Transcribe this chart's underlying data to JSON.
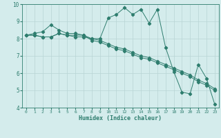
{
  "line1_x": [
    0,
    1,
    2,
    3,
    4,
    5,
    6,
    7,
    8,
    9,
    10,
    11,
    12,
    13,
    14,
    15,
    16,
    17,
    18,
    19,
    20,
    21,
    22,
    23
  ],
  "line1_y": [
    8.2,
    8.3,
    8.4,
    8.8,
    8.5,
    8.3,
    8.3,
    8.2,
    8.0,
    8.0,
    9.2,
    9.4,
    9.8,
    9.4,
    9.7,
    8.9,
    9.7,
    7.5,
    6.1,
    4.9,
    4.8,
    6.5,
    5.7,
    4.2
  ],
  "line2_x": [
    0,
    1,
    2,
    3,
    4,
    5,
    6,
    7,
    8,
    9,
    10,
    11,
    12,
    13,
    14,
    15,
    16,
    17,
    18,
    19,
    20,
    21,
    22,
    23
  ],
  "line2_y": [
    8.2,
    8.2,
    8.1,
    8.1,
    8.3,
    8.2,
    8.2,
    8.2,
    7.9,
    7.8,
    7.6,
    7.4,
    7.3,
    7.1,
    6.9,
    6.8,
    6.6,
    6.4,
    6.2,
    6.0,
    5.8,
    5.5,
    5.3,
    5.0
  ],
  "line3_x": [
    0,
    1,
    2,
    3,
    4,
    5,
    6,
    7,
    8,
    9,
    10,
    11,
    12,
    13,
    14,
    15,
    16,
    17,
    18,
    19,
    20,
    21,
    22,
    23
  ],
  "line3_y": [
    8.2,
    8.2,
    8.1,
    8.1,
    8.3,
    8.2,
    8.1,
    8.1,
    8.0,
    7.9,
    7.7,
    7.5,
    7.4,
    7.2,
    7.0,
    6.9,
    6.7,
    6.5,
    6.3,
    6.1,
    5.9,
    5.6,
    5.4,
    5.1
  ],
  "line_color": "#2e7d6e",
  "bg_color": "#d4ecec",
  "grid_color": "#b8d4d4",
  "xlabel": "Humidex (Indice chaleur)",
  "ylim": [
    4,
    10
  ],
  "xlim": [
    -0.5,
    23.5
  ],
  "yticks": [
    4,
    5,
    6,
    7,
    8,
    9,
    10
  ],
  "xticks": [
    0,
    1,
    2,
    3,
    4,
    5,
    6,
    7,
    8,
    9,
    10,
    11,
    12,
    13,
    14,
    15,
    16,
    17,
    18,
    19,
    20,
    21,
    22,
    23
  ]
}
